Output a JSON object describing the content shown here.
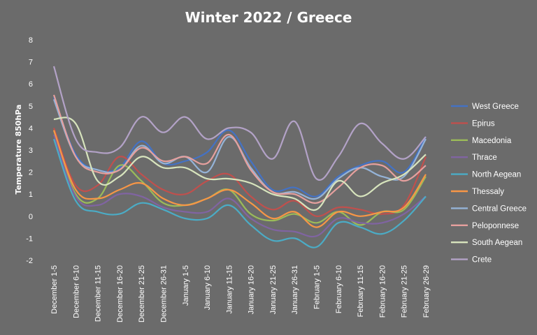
{
  "chart_data": {
    "type": "line",
    "title": "Winter 2022 / Greece",
    "xlabel": "",
    "ylabel": "Temperature 850hPa",
    "ylim": [
      -2,
      8
    ],
    "yticks": [
      "-2",
      "-1",
      "0",
      "1",
      "2",
      "3",
      "4",
      "5",
      "6",
      "7",
      "8"
    ],
    "grid": false,
    "legend": "right",
    "categories": [
      "December 1-5",
      "December 6-10",
      "December 11-15",
      "December 16-20",
      "December 21-25",
      "December 26-31",
      "January 1-5",
      "January 6-10",
      "January 11-15",
      "January 16-20",
      "January 21-25",
      "January 26-31",
      "February 1-5",
      "February 6-10",
      "February 11-15",
      "February 16-20",
      "February 21-25",
      "February 26-29"
    ],
    "series": [
      {
        "name": "West Greece",
        "color": "#4472c4",
        "values": [
          5.4,
          2.8,
          2.1,
          2.2,
          3.4,
          2.4,
          2.5,
          2.9,
          3.9,
          2.5,
          1.2,
          1.3,
          0.9,
          1.8,
          2.3,
          2.5,
          2.0,
          3.6
        ]
      },
      {
        "name": "Epirus",
        "color": "#c0504d",
        "values": [
          4.0,
          1.4,
          1.4,
          2.7,
          1.9,
          1.2,
          1.0,
          1.6,
          1.9,
          0.9,
          0.3,
          0.7,
          0.0,
          0.4,
          0.3,
          0.1,
          0.5,
          2.7
        ]
      },
      {
        "name": "Macedonia",
        "color": "#9bbb59",
        "values": [
          3.9,
          1.0,
          0.8,
          2.3,
          1.6,
          0.6,
          0.5,
          0.8,
          1.2,
          0.1,
          -0.2,
          0.1,
          -0.3,
          0.2,
          -0.4,
          0.2,
          0.3,
          1.8
        ]
      },
      {
        "name": "Thrace",
        "color": "#8064a2",
        "values": [
          3.7,
          0.9,
          0.5,
          1.0,
          0.9,
          0.4,
          0.2,
          0.2,
          0.8,
          -0.1,
          -0.6,
          -0.7,
          -0.9,
          -0.1,
          -0.3,
          -0.3,
          0.1,
          0.9
        ]
      },
      {
        "name": "North Aegean",
        "color": "#4bacc6",
        "values": [
          3.5,
          0.7,
          0.2,
          0.1,
          0.6,
          0.3,
          -0.1,
          -0.1,
          0.5,
          -0.4,
          -1.1,
          -1.0,
          -1.4,
          -0.3,
          -0.5,
          -0.8,
          -0.2,
          0.9
        ]
      },
      {
        "name": "Thessaly",
        "color": "#f79646",
        "values": [
          3.9,
          1.2,
          0.8,
          1.2,
          1.5,
          0.8,
          0.5,
          0.8,
          1.2,
          0.6,
          -0.1,
          0.2,
          -0.5,
          0.2,
          0.0,
          0.2,
          0.4,
          1.9
        ]
      },
      {
        "name": "Central Greece",
        "color": "#95b3d7",
        "values": [
          5.3,
          2.7,
          2.1,
          2.1,
          3.2,
          2.4,
          2.7,
          2.0,
          3.6,
          2.2,
          1.1,
          1.1,
          0.8,
          1.7,
          2.2,
          1.8,
          1.8,
          3.5
        ]
      },
      {
        "name": "Peloponnese",
        "color": "#e6a09e",
        "values": [
          5.5,
          2.7,
          2.0,
          2.1,
          3.1,
          2.5,
          2.7,
          2.4,
          3.7,
          2.1,
          1.1,
          1.0,
          0.6,
          1.3,
          2.2,
          2.3,
          1.6,
          2.3
        ]
      },
      {
        "name": "South Aegean",
        "color": "#d7e4bd",
        "values": [
          4.4,
          4.2,
          1.6,
          1.8,
          2.7,
          2.2,
          2.2,
          1.7,
          1.7,
          1.5,
          1.0,
          0.8,
          0.3,
          1.6,
          0.9,
          1.5,
          1.9,
          2.8
        ]
      },
      {
        "name": "Crete",
        "color": "#b3a2c7",
        "values": [
          6.8,
          3.5,
          2.9,
          3.1,
          4.5,
          3.8,
          4.5,
          3.5,
          4.0,
          3.8,
          2.6,
          4.3,
          1.7,
          2.7,
          4.2,
          3.3,
          2.6,
          3.6
        ]
      }
    ]
  }
}
